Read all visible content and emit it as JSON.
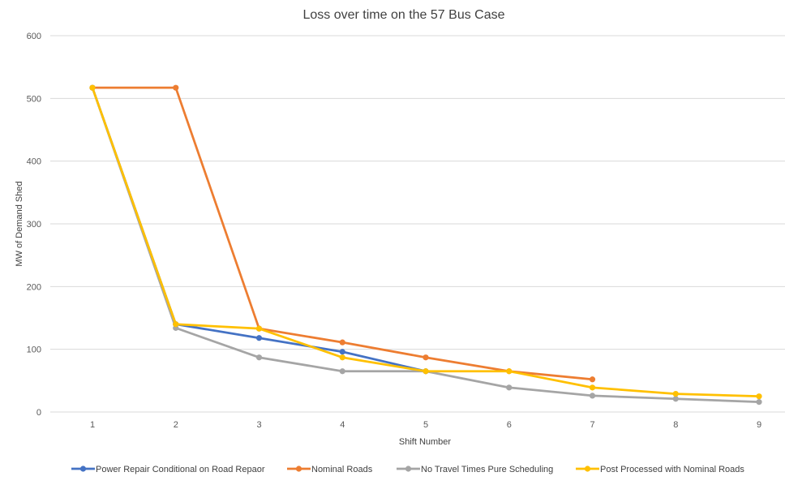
{
  "chart_data": {
    "type": "line",
    "title": "Loss over time on the 57 Bus Case",
    "xlabel": "Shift Number",
    "ylabel": "MW of Demand Shed",
    "x": [
      1,
      2,
      3,
      4,
      5,
      6,
      7,
      8,
      9
    ],
    "x_tick_labels": [
      "1",
      "2",
      "3",
      "4",
      "5",
      "6",
      "7",
      "8",
      "9"
    ],
    "ylim": [
      0,
      600
    ],
    "y_ticks": [
      0,
      100,
      200,
      300,
      400,
      500,
      600
    ],
    "y_tick_labels": [
      "0",
      "100",
      "200",
      "300",
      "400",
      "500",
      "600"
    ],
    "grid": "horizontal",
    "legend_position": "bottom",
    "series": [
      {
        "name": "Power Repair Conditional on Road Repaor",
        "color": "#4472c4",
        "x": [
          1,
          2,
          3,
          4,
          5
        ],
        "values": [
          517,
          140,
          118,
          96,
          65
        ]
      },
      {
        "name": "Nominal Roads",
        "color": "#ed7d31",
        "x": [
          1,
          2,
          3,
          4,
          5,
          6,
          7
        ],
        "values": [
          517,
          517,
          133,
          111,
          87,
          65,
          52
        ]
      },
      {
        "name": "No Travel Times Pure Scheduling",
        "color": "#a5a5a5",
        "x": [
          1,
          2,
          3,
          4,
          5,
          6,
          7,
          8,
          9
        ],
        "values": [
          517,
          134,
          87,
          65,
          65,
          39,
          26,
          21,
          16
        ]
      },
      {
        "name": "Post Processed with Nominal Roads",
        "color": "#ffc000",
        "x": [
          1,
          2,
          3,
          4,
          5,
          6,
          7,
          8,
          9
        ],
        "values": [
          517,
          140,
          133,
          87,
          65,
          65,
          39,
          29,
          25
        ]
      }
    ]
  }
}
